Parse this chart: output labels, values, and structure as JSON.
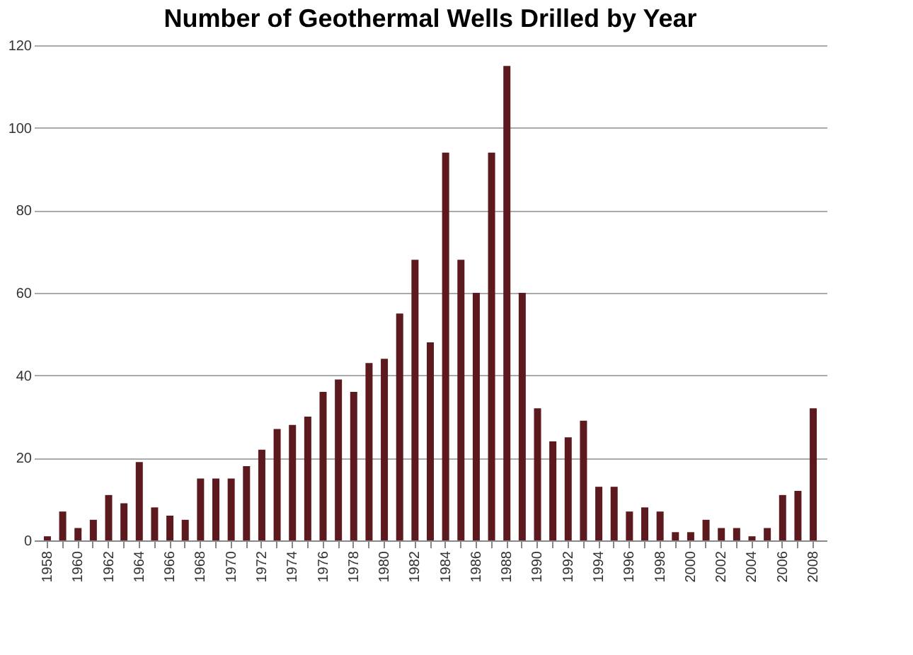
{
  "chart_data": {
    "type": "bar",
    "title": "Number of Geothermal Wells Drilled by Year",
    "categories": [
      "1958",
      null,
      "1960",
      null,
      "1962",
      null,
      "1964",
      null,
      "1966",
      null,
      "1968",
      null,
      "1970",
      null,
      "1972",
      null,
      "1974",
      null,
      "1976",
      null,
      "1978",
      null,
      "1980",
      null,
      "1982",
      null,
      "1984",
      null,
      "1986",
      null,
      "1988",
      null,
      "1990",
      null,
      "1992",
      null,
      "1994",
      null,
      "1996",
      null,
      "1998",
      null,
      "2000",
      null,
      "2002",
      null,
      "2004",
      null,
      "2006",
      null,
      "2008"
    ],
    "values": [
      1,
      7,
      3,
      5,
      11,
      9,
      19,
      8,
      6,
      5,
      15,
      15,
      15,
      18,
      22,
      27,
      28,
      30,
      36,
      39,
      36,
      43,
      44,
      55,
      68,
      48,
      94,
      68,
      60,
      94,
      115,
      60,
      32,
      24,
      25,
      29,
      13,
      13,
      7,
      8,
      7,
      2,
      2,
      5,
      3,
      3,
      1,
      3,
      11,
      12,
      32
    ],
    "color": "#5c1a1f",
    "ylim": [
      0,
      120
    ],
    "yticks": [
      0,
      20,
      40,
      60,
      80,
      100,
      120
    ],
    "grid": "y"
  }
}
